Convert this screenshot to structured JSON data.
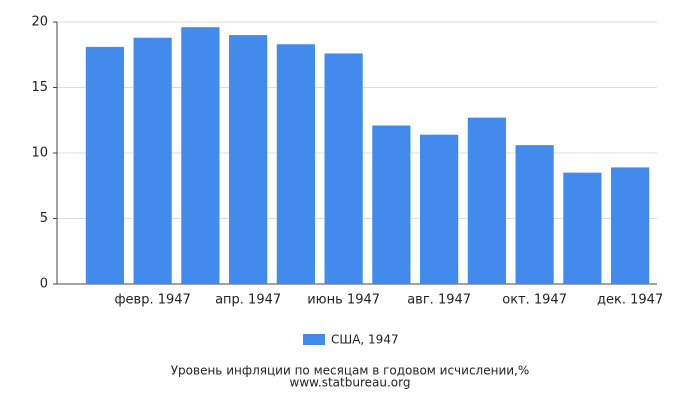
{
  "chart_data": {
    "type": "bar",
    "title": "Уровень инфляции по месяцам в годовом исчислении,%",
    "source": "www.statbureau.org",
    "categories": [
      null,
      "февр. 1947",
      null,
      "апр. 1947",
      null,
      "июнь 1947",
      null,
      "авг. 1947",
      null,
      "окт. 1947",
      null,
      "дек. 1947"
    ],
    "series": [
      {
        "name": "США, 1947",
        "color": "#428bed",
        "values": [
          18.1,
          18.8,
          19.6,
          19.0,
          18.3,
          17.6,
          12.1,
          11.4,
          12.7,
          10.6,
          8.5,
          8.9
        ]
      }
    ],
    "ylim": [
      0,
      20
    ],
    "yticks": [
      0,
      5,
      10,
      15,
      20
    ],
    "grid": true
  }
}
